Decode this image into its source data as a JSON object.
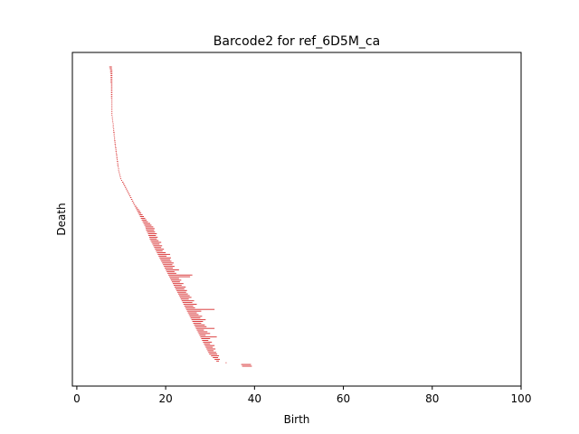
{
  "chart_data": {
    "type": "barcode",
    "title": "Barcode2 for ref_6D5M_ca",
    "xlabel": "Birth",
    "ylabel": "Death",
    "xlim": [
      -1,
      100
    ],
    "x_ticks": [
      0,
      20,
      40,
      60,
      80,
      100
    ],
    "y_ticks": [],
    "grid": false,
    "bar_color": "#d62728",
    "bars": [
      [
        7.3,
        7.9
      ],
      [
        7.4,
        7.9
      ],
      [
        7.5,
        8.0
      ],
      [
        7.5,
        8.0
      ],
      [
        7.6,
        8.0
      ],
      [
        7.6,
        8.0
      ],
      [
        7.6,
        8.0
      ],
      [
        7.6,
        8.0
      ],
      [
        7.6,
        8.0
      ],
      [
        7.6,
        8.0
      ],
      [
        7.7,
        8.0
      ],
      [
        7.7,
        8.0
      ],
      [
        7.7,
        8.0
      ],
      [
        7.7,
        8.0
      ],
      [
        7.7,
        8.0
      ],
      [
        7.7,
        8.0
      ],
      [
        7.7,
        8.0
      ],
      [
        7.7,
        8.0
      ],
      [
        7.7,
        8.0
      ],
      [
        7.8,
        8.0
      ],
      [
        7.8,
        8.0
      ],
      [
        7.8,
        8.0
      ],
      [
        7.8,
        8.0
      ],
      [
        7.8,
        8.0
      ],
      [
        7.8,
        8.0
      ],
      [
        7.8,
        8.0
      ],
      [
        7.8,
        8.0
      ],
      [
        7.8,
        8.0
      ],
      [
        7.8,
        8.0
      ],
      [
        7.9,
        8.0
      ],
      [
        7.9,
        8.1
      ],
      [
        8.0,
        8.1
      ],
      [
        8.0,
        8.2
      ],
      [
        8.1,
        8.2
      ],
      [
        8.1,
        8.3
      ],
      [
        8.1,
        8.3
      ],
      [
        8.2,
        8.4
      ],
      [
        8.2,
        8.4
      ],
      [
        8.2,
        8.5
      ],
      [
        8.3,
        8.5
      ],
      [
        8.3,
        8.5
      ],
      [
        8.4,
        8.6
      ],
      [
        8.4,
        8.6
      ],
      [
        8.4,
        8.7
      ],
      [
        8.5,
        8.7
      ],
      [
        8.5,
        8.8
      ],
      [
        8.6,
        8.8
      ],
      [
        8.6,
        8.9
      ],
      [
        8.7,
        8.9
      ],
      [
        8.7,
        9.0
      ],
      [
        8.8,
        9.0
      ],
      [
        8.8,
        9.1
      ],
      [
        8.9,
        9.1
      ],
      [
        8.9,
        9.2
      ],
      [
        9.0,
        9.2
      ],
      [
        9.0,
        9.3
      ],
      [
        9.1,
        9.3
      ],
      [
        9.1,
        9.4
      ],
      [
        9.2,
        9.4
      ],
      [
        9.3,
        9.5
      ],
      [
        9.3,
        9.5
      ],
      [
        9.4,
        9.6
      ],
      [
        9.5,
        9.7
      ],
      [
        9.6,
        9.8
      ],
      [
        9.7,
        9.9
      ],
      [
        9.8,
        10.0
      ],
      [
        10.0,
        10.2
      ],
      [
        10.2,
        10.5
      ],
      [
        10.4,
        10.7
      ],
      [
        10.6,
        10.9
      ],
      [
        10.8,
        11.1
      ],
      [
        11.0,
        11.3
      ],
      [
        11.2,
        11.5
      ],
      [
        11.4,
        11.7
      ],
      [
        11.6,
        11.9
      ],
      [
        11.8,
        12.1
      ],
      [
        12.0,
        12.3
      ],
      [
        12.2,
        12.5
      ],
      [
        12.4,
        12.7
      ],
      [
        12.6,
        12.9
      ],
      [
        12.8,
        13.1
      ],
      [
        13.0,
        13.4
      ],
      [
        13.2,
        13.7
      ],
      [
        13.4,
        14.0
      ],
      [
        13.6,
        14.3
      ],
      [
        13.8,
        14.5
      ],
      [
        14.0,
        14.8
      ],
      [
        14.2,
        15.1
      ],
      [
        14.4,
        15.4
      ],
      [
        14.6,
        15.7
      ],
      [
        14.8,
        16.0
      ],
      [
        15.0,
        16.5
      ],
      [
        15.2,
        16.8
      ],
      [
        15.4,
        17.2
      ],
      [
        15.5,
        17.5
      ],
      [
        15.6,
        17.4
      ],
      [
        15.8,
        17.6
      ],
      [
        16.0,
        18.0
      ],
      [
        16.1,
        17.8
      ],
      [
        16.3,
        18.2
      ],
      [
        16.4,
        18.0
      ],
      [
        16.6,
        18.4
      ],
      [
        16.8,
        19.0
      ],
      [
        17.0,
        18.6
      ],
      [
        17.2,
        19.2
      ],
      [
        17.4,
        19.0
      ],
      [
        17.6,
        19.6
      ],
      [
        17.8,
        19.3
      ],
      [
        18.0,
        20.0
      ],
      [
        18.2,
        21.0
      ],
      [
        18.4,
        20.2
      ],
      [
        18.6,
        21.2
      ],
      [
        18.8,
        21.0
      ],
      [
        19.0,
        21.3
      ],
      [
        19.2,
        21.8
      ],
      [
        19.4,
        21.5
      ],
      [
        19.6,
        22.0
      ],
      [
        19.8,
        21.6
      ],
      [
        20.0,
        23.0
      ],
      [
        20.2,
        22.0
      ],
      [
        20.4,
        22.4
      ],
      [
        20.6,
        26.0
      ],
      [
        20.8,
        25.5
      ],
      [
        21.0,
        23.0
      ],
      [
        21.2,
        23.5
      ],
      [
        21.4,
        23.2
      ],
      [
        21.6,
        24.0
      ],
      [
        21.8,
        23.6
      ],
      [
        22.0,
        24.5
      ],
      [
        22.2,
        24.2
      ],
      [
        22.4,
        24.8
      ],
      [
        22.6,
        24.6
      ],
      [
        22.8,
        25.0
      ],
      [
        23.0,
        25.4
      ],
      [
        23.2,
        25.8
      ],
      [
        23.4,
        25.2
      ],
      [
        23.6,
        26.4
      ],
      [
        23.8,
        26.0
      ],
      [
        24.0,
        27.0
      ],
      [
        24.2,
        26.2
      ],
      [
        24.4,
        26.6
      ],
      [
        24.6,
        31.0
      ],
      [
        24.8,
        28.0
      ],
      [
        25.0,
        27.0
      ],
      [
        25.2,
        27.4
      ],
      [
        25.4,
        28.2
      ],
      [
        25.6,
        27.8
      ],
      [
        25.8,
        29.0
      ],
      [
        26.0,
        28.4
      ],
      [
        26.2,
        28.0
      ],
      [
        26.4,
        28.8
      ],
      [
        26.6,
        29.2
      ],
      [
        26.8,
        31.0
      ],
      [
        27.0,
        28.6
      ],
      [
        27.2,
        29.4
      ],
      [
        27.4,
        30.0
      ],
      [
        27.6,
        29.0
      ],
      [
        27.8,
        31.5
      ],
      [
        28.0,
        30.0
      ],
      [
        28.2,
        29.6
      ],
      [
        28.4,
        30.4
      ],
      [
        28.6,
        30.0
      ],
      [
        28.8,
        31.0
      ],
      [
        29.0,
        30.6
      ],
      [
        29.2,
        31.2
      ],
      [
        29.4,
        30.8
      ],
      [
        29.6,
        31.4
      ],
      [
        29.8,
        31.6
      ],
      [
        30.2,
        32.0
      ],
      [
        30.6,
        31.8
      ],
      [
        31.0,
        32.2
      ],
      [
        31.4,
        32.0
      ],
      [
        33.5,
        33.7
      ],
      [
        37.0,
        39.2
      ],
      [
        37.2,
        39.4
      ]
    ]
  }
}
